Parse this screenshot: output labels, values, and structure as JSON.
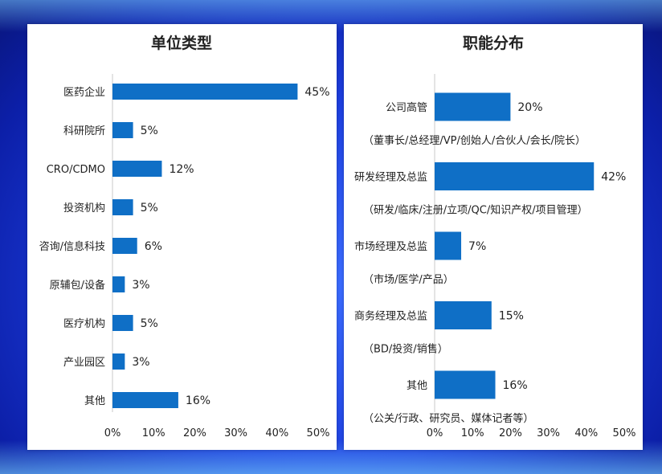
{
  "colors": {
    "bar": "#0f6fc6",
    "axis": "#c9c9c9"
  },
  "chart_data": [
    {
      "type": "bar",
      "orientation": "horizontal",
      "title": "单位类型",
      "categories": [
        "医药企业",
        "科研院所",
        "CRO/CDMO",
        "投资机构",
        "咨询/信息科技",
        "原辅包/设备",
        "医疗机构",
        "产业园区",
        "其他"
      ],
      "values": [
        45,
        5,
        12,
        5,
        6,
        3,
        5,
        3,
        16
      ],
      "value_labels": [
        "45%",
        "5%",
        "12%",
        "5%",
        "6%",
        "3%",
        "5%",
        "3%",
        "16%"
      ],
      "xlim": [
        0,
        50
      ],
      "xticks": [
        "0%",
        "10%",
        "20%",
        "30%",
        "40%",
        "50%"
      ],
      "grid": false,
      "unit": "%"
    },
    {
      "type": "bar",
      "orientation": "horizontal",
      "title": "职能分布",
      "categories": [
        "公司高管",
        "研发经理及总监",
        "市场经理及总监",
        "商务经理及总监",
        "其他"
      ],
      "notes": [
        "（董事长/总经理/VP/创始人/合伙人/会长/院长）",
        "（研发/临床/注册/立项/QC/知识产权/项目管理）",
        "（市场/医学/产品）",
        "（BD/投资/销售）",
        "（公关/行政、研究员、媒体记者等）"
      ],
      "values": [
        20,
        42,
        7,
        15,
        16
      ],
      "value_labels": [
        "20%",
        "42%",
        "7%",
        "15%",
        "16%"
      ],
      "xlim": [
        0,
        50
      ],
      "xticks": [
        "0%",
        "10%",
        "20%",
        "30%",
        "40%",
        "50%"
      ],
      "grid": false,
      "unit": "%"
    }
  ]
}
